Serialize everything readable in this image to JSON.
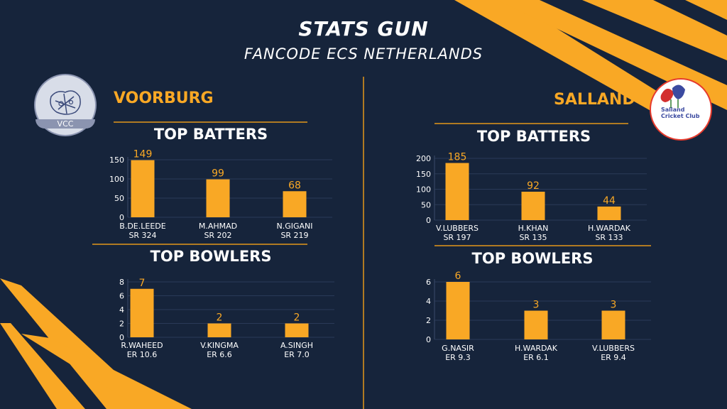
{
  "header": {
    "title": "STATS GUN",
    "subtitle": "FANCODE ECS NETHERLANDS"
  },
  "teams": [
    {
      "name": "VOORBURG",
      "logo_text": "VCC"
    },
    {
      "name": "SALLAND",
      "logo_text": "Salland Cricket Club"
    }
  ],
  "colors": {
    "background": "#16243b",
    "accent": "#f9a825",
    "text": "#ffffff"
  },
  "chart_data": [
    {
      "type": "bar",
      "title": "TOP BATTERS",
      "team": "VOORBURG",
      "categories": [
        "B.DE.LEEDE",
        "M.AHMAD",
        "N.GIGANI"
      ],
      "sublabels": [
        "SR 324",
        "SR 202",
        "SR 219"
      ],
      "values": [
        149,
        99,
        68
      ],
      "yticks": [
        0,
        50,
        100,
        150
      ],
      "ylim": [
        0,
        150
      ]
    },
    {
      "type": "bar",
      "title": "TOP BOWLERS",
      "team": "VOORBURG",
      "categories": [
        "R.WAHEED",
        "V.KINGMA",
        "A.SINGH"
      ],
      "sublabels": [
        "ER 10.6",
        "ER 6.6",
        "ER 7.0"
      ],
      "values": [
        7,
        2,
        2
      ],
      "yticks": [
        0,
        2,
        4,
        6,
        8
      ],
      "ylim": [
        0,
        8
      ]
    },
    {
      "type": "bar",
      "title": "TOP BATTERS",
      "team": "SALLAND",
      "categories": [
        "V.LUBBERS",
        "H.KHAN",
        "H.WARDAK"
      ],
      "sublabels": [
        "SR 197",
        "SR 135",
        "SR 133"
      ],
      "values": [
        185,
        92,
        44
      ],
      "yticks": [
        0,
        50,
        100,
        150,
        200
      ],
      "ylim": [
        0,
        200
      ]
    },
    {
      "type": "bar",
      "title": "TOP BOWLERS",
      "team": "SALLAND",
      "categories": [
        "G.NASIR",
        "H.WARDAK",
        "V.LUBBERS"
      ],
      "sublabels": [
        "ER 9.3",
        "ER 6.1",
        "ER 9.4"
      ],
      "values": [
        6,
        3,
        3
      ],
      "yticks": [
        0,
        2,
        4,
        6
      ],
      "ylim": [
        0,
        6
      ]
    }
  ]
}
